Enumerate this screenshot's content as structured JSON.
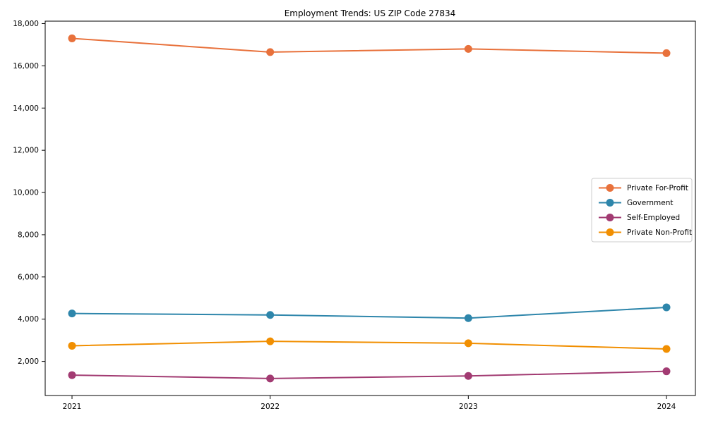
{
  "chart_data": {
    "type": "line",
    "title": "Employment Trends: US ZIP Code 27834",
    "xlabel": "",
    "ylabel": "",
    "x": [
      "2021",
      "2022",
      "2023",
      "2024"
    ],
    "series": [
      {
        "name": "Private For-Profit",
        "color": "#E8713B",
        "values": [
          17300,
          16650,
          16800,
          16600
        ]
      },
      {
        "name": "Government",
        "color": "#2E86AB",
        "values": [
          4270,
          4200,
          4050,
          4560
        ]
      },
      {
        "name": "Self-Employed",
        "color": "#A23B72",
        "values": [
          1350,
          1190,
          1310,
          1530
        ]
      },
      {
        "name": "Private Non-Profit",
        "color": "#F18F01",
        "values": [
          2740,
          2950,
          2860,
          2590
        ]
      }
    ],
    "yticks": [
      2000,
      4000,
      6000,
      8000,
      10000,
      12000,
      14000,
      16000,
      18000
    ],
    "ytick_labels": [
      "2,000",
      "4,000",
      "6,000",
      "8,000",
      "10,000",
      "12,000",
      "14,000",
      "16,000",
      "18,000"
    ],
    "ylim": [
      384,
      18116
    ],
    "grid": false,
    "legend_position": "center right",
    "background_color": "#ffffff",
    "axis_color": "#000000",
    "legend_border_color": "#cccccc",
    "marker": "circle"
  }
}
